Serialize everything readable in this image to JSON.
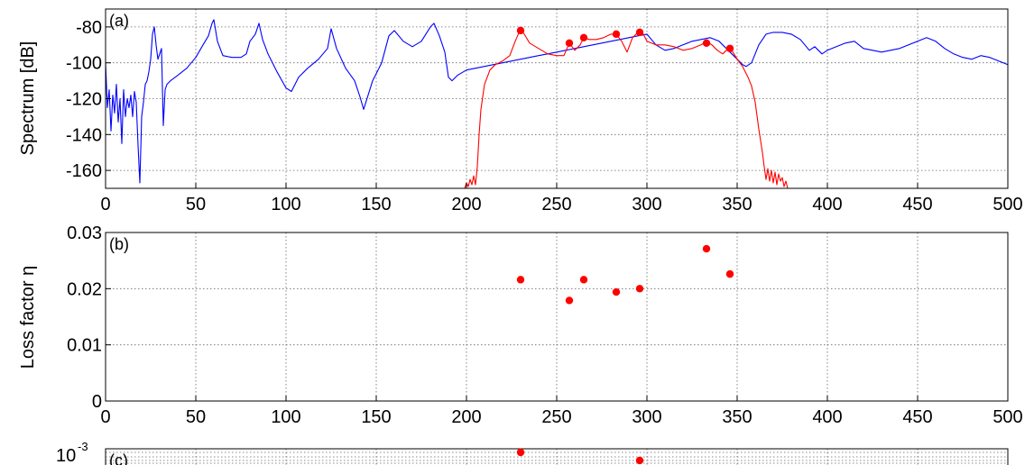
{
  "chart_data": [
    {
      "type": "line",
      "panel_label": "(a)",
      "ylabel": "Spectrum [dB]",
      "xlim": [
        0,
        500
      ],
      "ylim": [
        -170,
        -70
      ],
      "x_ticks": [
        0,
        50,
        100,
        150,
        200,
        250,
        300,
        350,
        400,
        450,
        500
      ],
      "y_ticks": [
        -80,
        -100,
        -120,
        -140,
        -160
      ],
      "grid": true,
      "colors": {
        "full_spectrum": "#0000ff",
        "filtered_spectrum": "#ff0000",
        "peaks": "#ff0000"
      },
      "series": [
        {
          "color": "#0000ff",
          "x": [
            0,
            1,
            2,
            3,
            4,
            5,
            6,
            7,
            8,
            9,
            10,
            11,
            12,
            13,
            14,
            15,
            16,
            17,
            18,
            19,
            20,
            21,
            22,
            23,
            24,
            25,
            26,
            27,
            28,
            29,
            30,
            31,
            32,
            33,
            34,
            36,
            40,
            45,
            50,
            54,
            57,
            59,
            60,
            62,
            65,
            70,
            75,
            78,
            80,
            83,
            85,
            87,
            90,
            95,
            100,
            103,
            107,
            112,
            118,
            123,
            125,
            128,
            133,
            138,
            141,
            143,
            148,
            153,
            157,
            160,
            165,
            170,
            175,
            180,
            182,
            185,
            188,
            190,
            192,
            195,
            200,
            205,
            210,
            215,
            220,
            225,
            230,
            235,
            240,
            245,
            250,
            255,
            260,
            265,
            270,
            275,
            280,
            285,
            290,
            295,
            300,
            305,
            310,
            315,
            320,
            325,
            330,
            335,
            340,
            345,
            350,
            353,
            355,
            358,
            362,
            366,
            370,
            375,
            380,
            385,
            390,
            393,
            397,
            400,
            405,
            410,
            415,
            420,
            430,
            440,
            450,
            455,
            460,
            465,
            470,
            475,
            480,
            485,
            490,
            495,
            500
          ],
          "values": [
            -100,
            -125,
            -115,
            -138,
            -118,
            -128,
            -112,
            -133,
            -120,
            -145,
            -115,
            -130,
            -120,
            -125,
            -118,
            -130,
            -116,
            -122,
            -146,
            -167,
            -130,
            -122,
            -112,
            -110,
            -105,
            -98,
            -84,
            -80,
            -90,
            -98,
            -95,
            -92,
            -135,
            -115,
            -112,
            -110,
            -107,
            -103,
            -97,
            -90,
            -85,
            -78,
            -76,
            -88,
            -96,
            -97,
            -97,
            -95,
            -88,
            -84,
            -78,
            -87,
            -95,
            -105,
            -114,
            -116,
            -108,
            -103,
            -98,
            -92,
            -81,
            -92,
            -103,
            -110,
            -119,
            -126,
            -110,
            -100,
            -85,
            -82,
            -88,
            -91,
            -88,
            -80,
            -78,
            -85,
            -94,
            -108,
            -110,
            -107,
            -104,
            -103,
            -102,
            -101,
            -100,
            -99,
            -98,
            -97,
            -96,
            -95,
            -94,
            -93,
            -92,
            -91,
            -90,
            -89,
            -88,
            -87,
            -86,
            -85,
            -84,
            -90,
            -93,
            -92,
            -90,
            -88,
            -87,
            -86,
            -88,
            -93,
            -98,
            -101,
            -102,
            -100,
            -90,
            -84,
            -83,
            -83,
            -84,
            -87,
            -93,
            -91,
            -95,
            -93,
            -91,
            -89,
            -88,
            -92,
            -94,
            -92,
            -88,
            -86,
            -88,
            -92,
            -95,
            -97,
            -98,
            -96,
            -97,
            -99,
            -101
          ]
        },
        {
          "color": "#ff0000",
          "x": [
            199,
            200,
            201,
            202,
            203,
            204,
            205,
            206,
            207,
            208,
            210,
            213,
            216,
            220,
            224,
            227,
            230,
            232,
            235,
            240,
            245,
            250,
            254,
            257,
            260,
            263,
            265,
            268,
            272,
            276,
            280,
            283,
            286,
            289,
            292,
            294,
            296,
            298,
            300,
            305,
            310,
            315,
            320,
            325,
            330,
            333,
            336,
            339,
            342,
            345,
            347,
            350,
            353,
            356,
            358,
            360,
            362,
            364,
            365,
            366,
            367,
            368,
            369,
            370,
            371,
            372,
            373,
            374,
            375,
            376,
            377,
            378,
            380
          ],
          "values": [
            -170,
            -167,
            -169,
            -165,
            -168,
            -163,
            -168,
            -158,
            -140,
            -126,
            -112,
            -104,
            -101,
            -99,
            -96,
            -88,
            -81,
            -84,
            -89,
            -92,
            -95,
            -96,
            -96,
            -89,
            -93,
            -90,
            -86,
            -87,
            -87,
            -86,
            -84,
            -84,
            -88,
            -94,
            -86,
            -84,
            -82,
            -84,
            -88,
            -90,
            -90,
            -91,
            -93,
            -92,
            -90,
            -88,
            -90,
            -93,
            -95,
            -92,
            -93,
            -98,
            -102,
            -108,
            -113,
            -122,
            -137,
            -150,
            -158,
            -165,
            -159,
            -166,
            -160,
            -167,
            -161,
            -168,
            -162,
            -166,
            -164,
            -169,
            -166,
            -170,
            -170
          ]
        },
        {
          "type": "scatter",
          "color": "#ff0000",
          "x": [
            230,
            257,
            265,
            283,
            296,
            333,
            346
          ],
          "values": [
            -82,
            -89,
            -86,
            -84,
            -83,
            -89,
            -92
          ]
        }
      ]
    },
    {
      "type": "scatter",
      "panel_label": "(b)",
      "ylabel": "Loss factor η",
      "xlim": [
        0,
        500
      ],
      "ylim": [
        0,
        0.03
      ],
      "x_ticks": [
        0,
        50,
        100,
        150,
        200,
        250,
        300,
        350,
        400,
        450,
        500
      ],
      "y_ticks": [
        0,
        0.01,
        0.02,
        0.03
      ],
      "y_tick_labels": [
        "0",
        "0.01",
        "0.02",
        "0.03"
      ],
      "grid": true,
      "series": [
        {
          "color": "#ff0000",
          "x": [
            230,
            257,
            265,
            283,
            296,
            333,
            346
          ],
          "values": [
            0.0216,
            0.0179,
            0.0216,
            0.0194,
            0.02,
            0.0271,
            0.0226
          ]
        }
      ]
    },
    {
      "type": "scatter",
      "panel_label": "(c)",
      "y_tick_labels": [
        "10"
      ],
      "y_exponent": "-3",
      "grid": true,
      "series": [
        {
          "color": "#ff0000",
          "x": [
            230,
            296
          ]
        }
      ]
    }
  ]
}
